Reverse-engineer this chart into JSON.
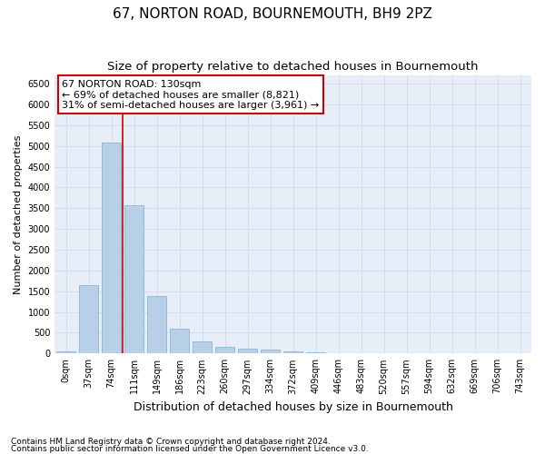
{
  "title": "67, NORTON ROAD, BOURNEMOUTH, BH9 2PZ",
  "subtitle": "Size of property relative to detached houses in Bournemouth",
  "xlabel": "Distribution of detached houses by size in Bournemouth",
  "ylabel": "Number of detached properties",
  "footnote1": "Contains HM Land Registry data © Crown copyright and database right 2024.",
  "footnote2": "Contains public sector information licensed under the Open Government Licence v3.0.",
  "bin_labels": [
    "0sqm",
    "37sqm",
    "74sqm",
    "111sqm",
    "149sqm",
    "186sqm",
    "223sqm",
    "260sqm",
    "297sqm",
    "334sqm",
    "372sqm",
    "409sqm",
    "446sqm",
    "483sqm",
    "520sqm",
    "557sqm",
    "594sqm",
    "632sqm",
    "669sqm",
    "706sqm",
    "743sqm"
  ],
  "bar_values": [
    60,
    1640,
    5080,
    3580,
    1380,
    600,
    290,
    155,
    120,
    90,
    50,
    25,
    10,
    5,
    3,
    2,
    1,
    1,
    0,
    0,
    0
  ],
  "bar_color": "#b8cfe8",
  "bar_edge_color": "#7bafd4",
  "grid_color": "#d0dcea",
  "vline_color": "#cc0000",
  "annotation_text": "67 NORTON ROAD: 130sqm\n← 69% of detached houses are smaller (8,821)\n31% of semi-detached houses are larger (3,961) →",
  "annotation_box_color": "#ffffff",
  "annotation_box_edge": "#cc0000",
  "ylim": [
    0,
    6700
  ],
  "yticks": [
    0,
    500,
    1000,
    1500,
    2000,
    2500,
    3000,
    3500,
    4000,
    4500,
    5000,
    5500,
    6000,
    6500
  ],
  "bg_color": "#e8eef8",
  "title_fontsize": 11,
  "subtitle_fontsize": 9.5,
  "xlabel_fontsize": 9,
  "ylabel_fontsize": 8,
  "tick_fontsize": 7,
  "annotation_fontsize": 8,
  "footnote_fontsize": 6.5,
  "vline_pos": 2.5
}
